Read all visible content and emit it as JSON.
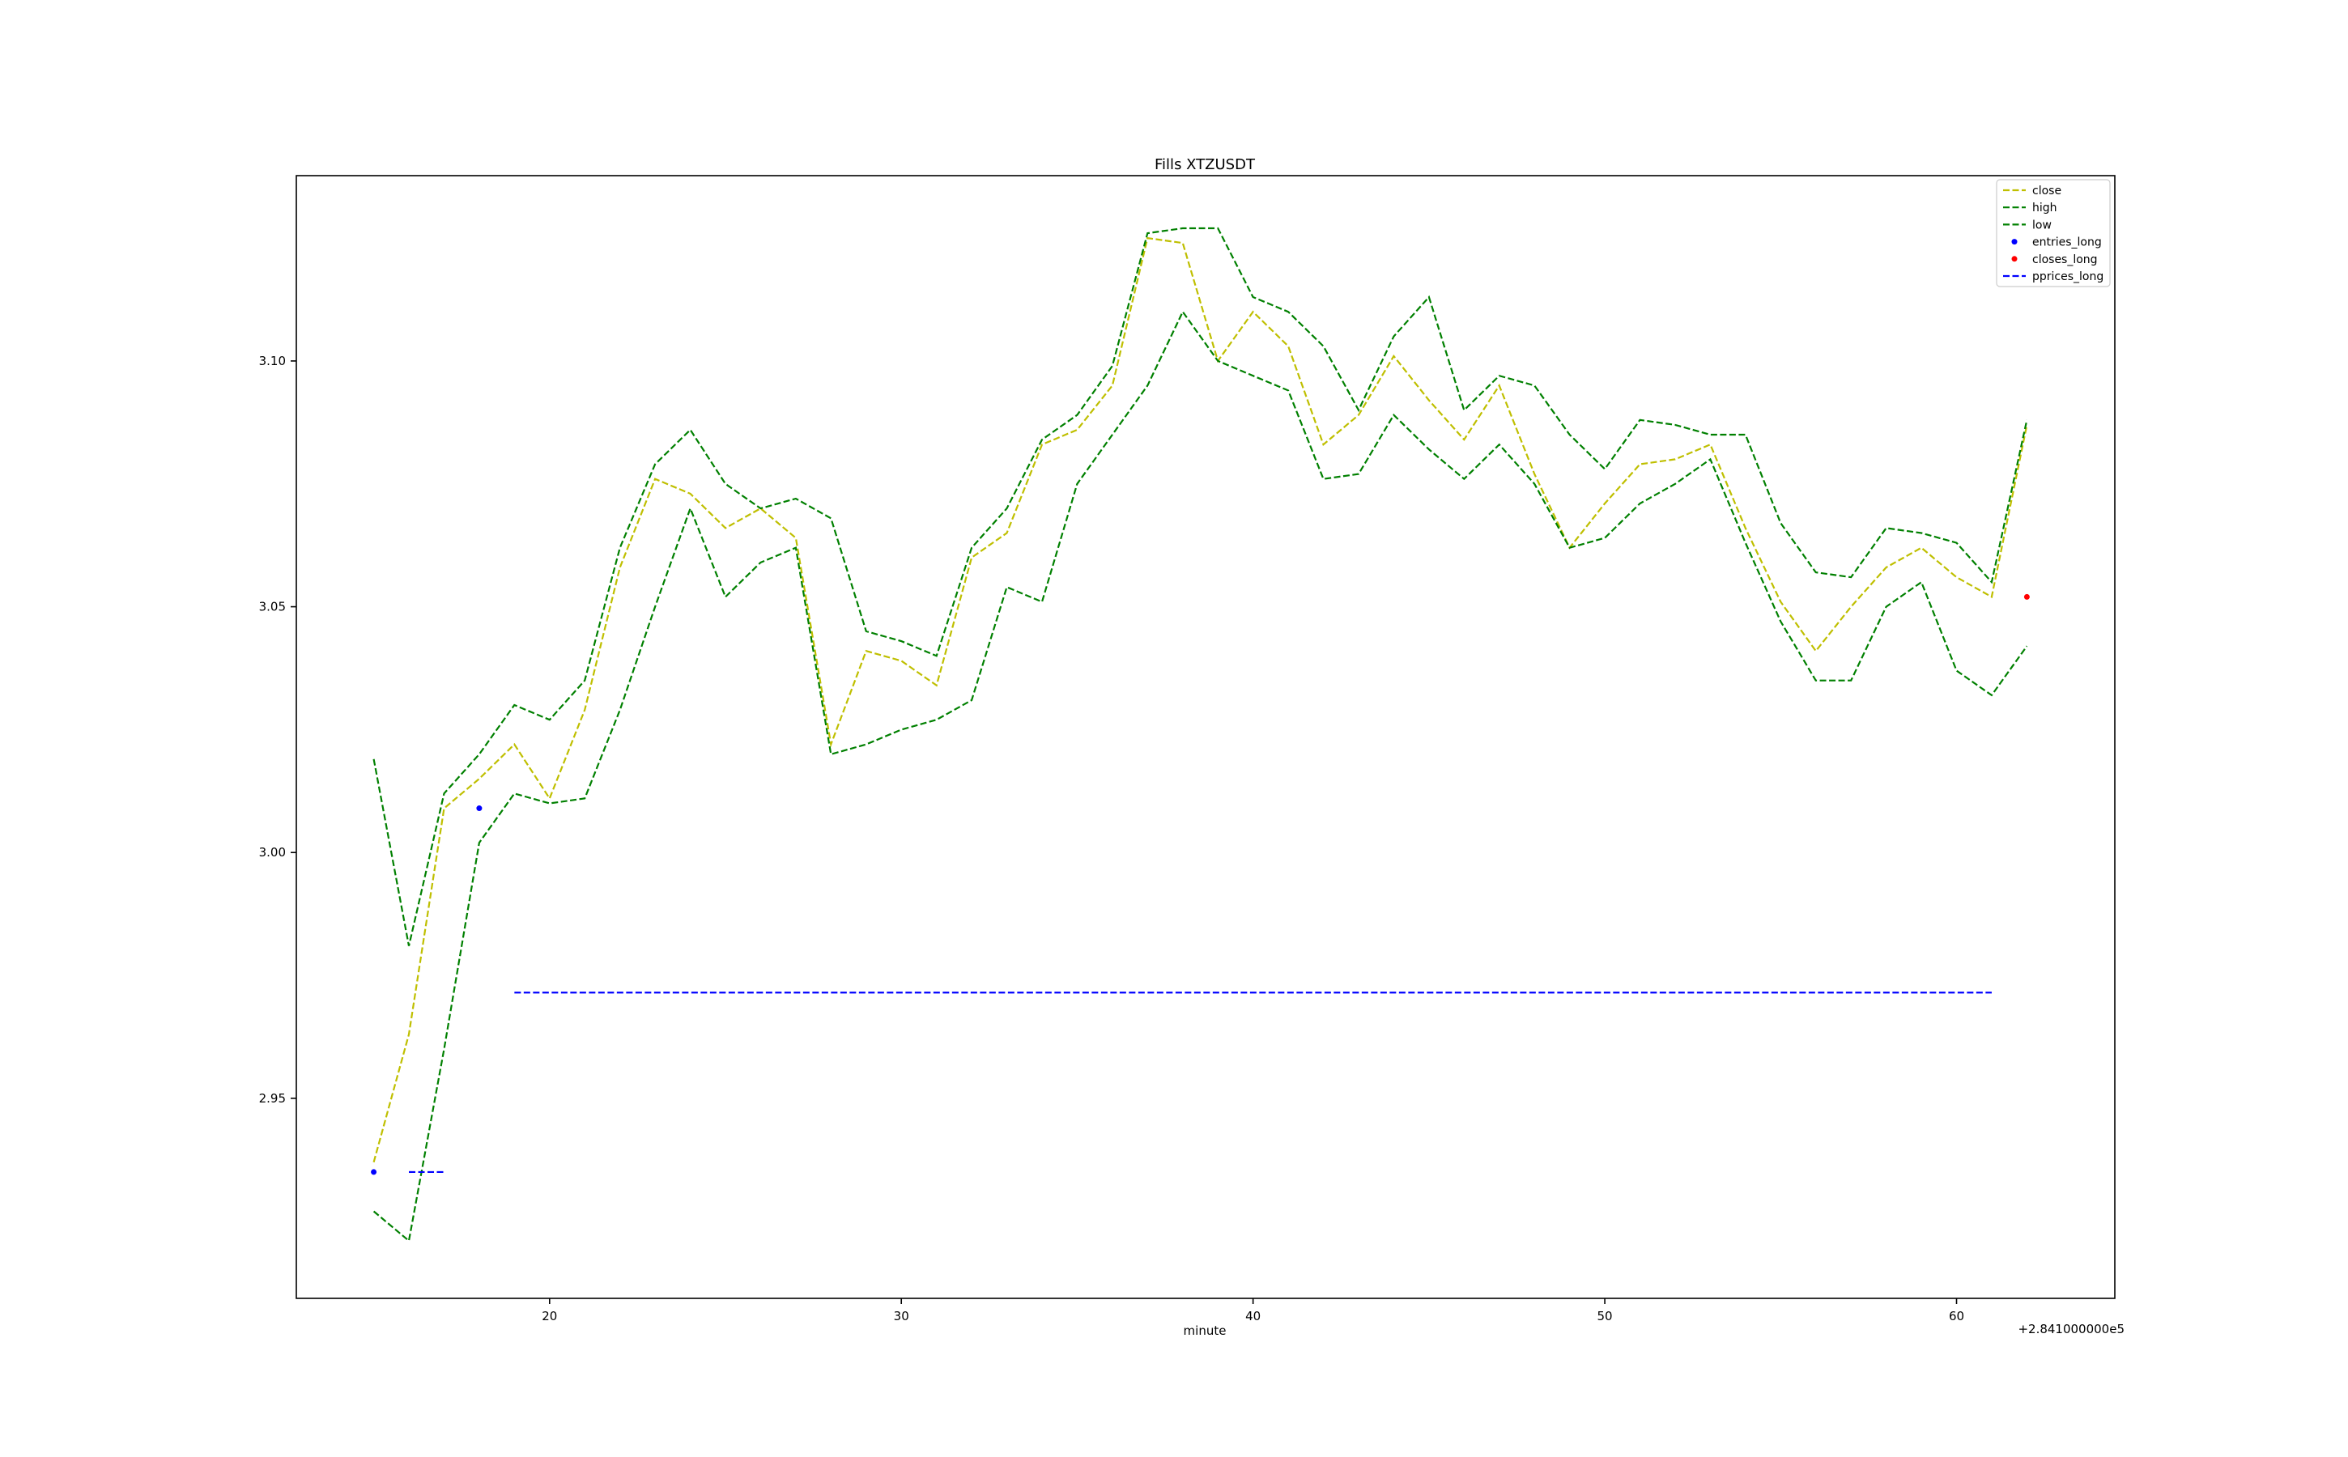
{
  "chart_data": {
    "type": "line",
    "title": "Fills XTZUSDT",
    "xlabel": "minute",
    "ylabel": "",
    "x_offset_label": "+2.841000000e5",
    "xlim": [
      12.8,
      64.5
    ],
    "ylim": [
      2.9093,
      3.1377
    ],
    "xticks": [
      20,
      30,
      40,
      50,
      60
    ],
    "yticks": [
      2.95,
      3.0,
      3.05,
      3.1
    ],
    "ytick_labels": [
      "2.95",
      "3.00",
      "3.05",
      "3.10"
    ],
    "xtick_labels": [
      "20",
      "30",
      "40",
      "50",
      "60"
    ],
    "grid": false,
    "legend_position": "top-right",
    "x": [
      15,
      16,
      17,
      18,
      19,
      20,
      21,
      22,
      23,
      24,
      25,
      26,
      27,
      28,
      29,
      30,
      31,
      32,
      33,
      34,
      35,
      36,
      37,
      38,
      39,
      40,
      41,
      42,
      43,
      44,
      45,
      46,
      47,
      48,
      49,
      50,
      51,
      52,
      53,
      54,
      55,
      56,
      57,
      58,
      59,
      60,
      61,
      62
    ],
    "series": [
      {
        "name": "close",
        "style": "dashed-line",
        "color": "#bfbf00",
        "values": [
          2.937,
          2.963,
          3.009,
          3.015,
          3.022,
          3.011,
          3.029,
          3.058,
          3.076,
          3.073,
          3.066,
          3.07,
          3.064,
          3.022,
          3.041,
          3.039,
          3.034,
          3.06,
          3.065,
          3.083,
          3.086,
          3.095,
          3.125,
          3.124,
          3.1,
          3.11,
          3.103,
          3.083,
          3.089,
          3.101,
          3.092,
          3.084,
          3.095,
          3.077,
          3.062,
          3.071,
          3.079,
          3.08,
          3.083,
          3.066,
          3.051,
          3.041,
          3.05,
          3.058,
          3.062,
          3.056,
          3.052,
          3.087
        ]
      },
      {
        "name": "high",
        "style": "dashed-line",
        "color": "#008000",
        "values": [
          3.019,
          2.981,
          3.012,
          3.02,
          3.03,
          3.027,
          3.035,
          3.062,
          3.079,
          3.086,
          3.075,
          3.07,
          3.072,
          3.068,
          3.045,
          3.043,
          3.04,
          3.062,
          3.07,
          3.084,
          3.089,
          3.099,
          3.126,
          3.127,
          3.127,
          3.113,
          3.11,
          3.103,
          3.09,
          3.105,
          3.113,
          3.09,
          3.097,
          3.095,
          3.085,
          3.078,
          3.088,
          3.087,
          3.085,
          3.085,
          3.067,
          3.057,
          3.056,
          3.066,
          3.065,
          3.063,
          3.055,
          3.088
        ]
      },
      {
        "name": "low",
        "style": "dashed-line",
        "color": "#008000",
        "values": [
          2.927,
          2.921,
          2.96,
          3.002,
          3.012,
          3.01,
          3.011,
          3.029,
          3.05,
          3.07,
          3.052,
          3.059,
          3.062,
          3.02,
          3.022,
          3.025,
          3.027,
          3.031,
          3.054,
          3.051,
          3.075,
          3.085,
          3.095,
          3.11,
          3.1,
          3.097,
          3.094,
          3.076,
          3.077,
          3.089,
          3.082,
          3.076,
          3.083,
          3.075,
          3.062,
          3.064,
          3.071,
          3.075,
          3.08,
          3.063,
          3.047,
          3.035,
          3.035,
          3.05,
          3.055,
          3.037,
          3.032,
          3.042
        ]
      },
      {
        "name": "entries_long",
        "style": "points",
        "color": "#0000ff",
        "points": [
          [
            15,
            2.935
          ],
          [
            18,
            3.009
          ]
        ]
      },
      {
        "name": "closes_long",
        "style": "points",
        "color": "#ff0000",
        "points": [
          [
            62,
            3.052
          ]
        ]
      },
      {
        "name": "pprices_long",
        "style": "dashed-segments",
        "color": "#0000ff",
        "segments": [
          [
            [
              16,
              2.935
            ],
            [
              17,
              2.935
            ]
          ],
          [
            [
              19,
              2.9715
            ],
            [
              61,
              2.9715
            ]
          ]
        ]
      }
    ]
  }
}
